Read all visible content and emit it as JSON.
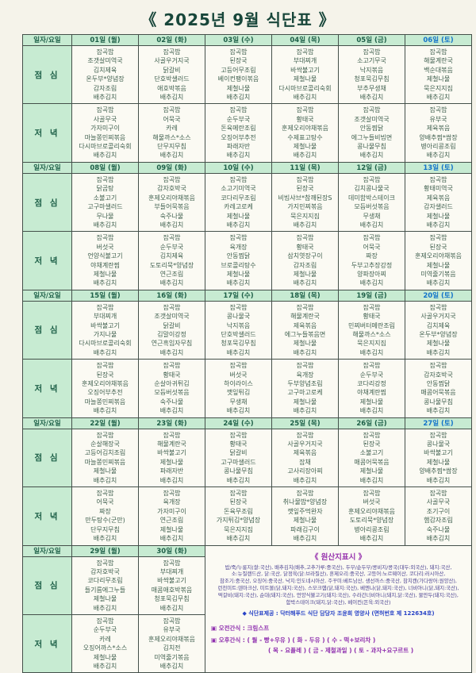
{
  "title": "《 2025년 9월 식단표 》",
  "header_label": "일자/요일",
  "row_labels": {
    "lunch": "점 심",
    "dinner": "저 녁"
  },
  "colors": {
    "header_bg": "#c7ebd2",
    "saturday_text": "#1173c9",
    "weekday_text": "#1d5f47",
    "menu_text": "#40604f",
    "origin_title": "#9631ad",
    "provider_text": "#2742c6"
  },
  "weeks": [
    {
      "dates": [
        "01일 (월)",
        "02일 (화)",
        "03일 (수)",
        "04일 (목)",
        "05일 (금)",
        "06일 (토)"
      ],
      "lunch": [
        [
          "잡곡밥",
          "조갯살미역국",
          "김치제육",
          "온두부*양념장",
          "감자조림",
          "배추김치"
        ],
        [
          "잡곡밥",
          "사골우거지국",
          "닭갈비",
          "단호박샐러드",
          "애호박볶음",
          "배추김치"
        ],
        [
          "잡곡밥",
          "된장국",
          "고등어무조림",
          "베이컨팽이볶음",
          "제철나물",
          "배추김치"
        ],
        [
          "잡곡밥",
          "부대찌개",
          "바싹불고기",
          "제철나물",
          "다시마브로콜리숙회",
          "배추김치"
        ],
        [
          "잡곡밥",
          "소고기무국",
          "낙지볶음",
          "청포묵김무침",
          "부추무생채",
          "배추김치"
        ],
        [
          "잡곡밥",
          "해물계란국",
          "백순대볶음",
          "제철나물",
          "묵은지지짐",
          "배추김치"
        ]
      ],
      "dinner": [
        [
          "잡곡밥",
          "사골무국",
          "가자미구이",
          "마늘쫑민찌볶음",
          "다시마브로콜리숙회",
          "배추김치"
        ],
        [
          "잡곡밥",
          "어묵국",
          "카레",
          "해물까스*소스",
          "단무지무침",
          "배추김치"
        ],
        [
          "잡곡밥",
          "순두부국",
          "돈육메란조림",
          "오징어부추전",
          "파래자반",
          "배추김치"
        ],
        [
          "잡곡밥",
          "황태국",
          "훈제오리야채볶음",
          "수제표고탕수",
          "제철나물",
          "배추김치"
        ],
        [
          "잡곡밥",
          "조갯살미역국",
          "안동찜닭",
          "에그누들비빔면",
          "콩나물무침",
          "배추김치"
        ],
        [
          "잡곡밥",
          "유부국",
          "제육볶음",
          "양배추찜*쌈장",
          "병아리콩조림",
          "배추김치"
        ]
      ]
    },
    {
      "dates": [
        "08일 (월)",
        "09일 (화)",
        "10일 (수)",
        "11일 (목)",
        "12일 (금)",
        "13일 (토)"
      ],
      "lunch": [
        [
          "잡곡밥",
          "닭곰탕",
          "소불고기",
          "고구마샐러드",
          "무나물",
          "배추김치"
        ],
        [
          "잡곡밥",
          "감자호박국",
          "훈제오리야채볶음",
          "부들어묵볶음",
          "숙주나물",
          "배추김치"
        ],
        [
          "잡곡밥",
          "소고기미역국",
          "코다리무조림",
          "카레고로케",
          "제철나물",
          "배추김치"
        ],
        [
          "잡곡밥",
          "된장국",
          "비빔샤브*참깨된장S",
          "가지민찌볶음",
          "묵은지지짐",
          "배추김치"
        ],
        [
          "잡곡밥",
          "김치콩나물국",
          "데미함박스테이크",
          "모듬버섯볶음",
          "무생채",
          "배추김치"
        ],
        [
          "잡곡밥",
          "황태미역국",
          "제육볶음",
          "감자샐러드",
          "제철나물",
          "배추김치"
        ]
      ],
      "dinner": [
        [
          "잡곡밥",
          "버섯국",
          "언양식불고기",
          "야채계란찜",
          "제철나물",
          "배추김치"
        ],
        [
          "잡곡밥",
          "순두부국",
          "김치제육",
          "도토리묵*양념장",
          "연근조림",
          "배추김치"
        ],
        [
          "잡곡밥",
          "육개장",
          "안동찜닭",
          "브로콜리탕수",
          "제철나물",
          "배추김치"
        ],
        [
          "잡곡밥",
          "황태국",
          "삼치엿장구이",
          "감자조림",
          "제철나물",
          "배추김치"
        ],
        [
          "잡곡밥",
          "어묵국",
          "짜장",
          "두부고추장강정",
          "양파장아찌",
          "배추김치"
        ],
        [
          "잡곡밥",
          "된장국",
          "훈제오리야채볶음",
          "제철나물",
          "미역줄기볶음",
          "배추김치"
        ]
      ]
    },
    {
      "dates": [
        "15일 (월)",
        "16일 (화)",
        "17일 (수)",
        "18일 (목)",
        "19일 (금)",
        "20일 (토)"
      ],
      "lunch": [
        [
          "잡곡밥",
          "부대찌개",
          "바싹불고기",
          "가지나물",
          "다시마브로콜리숙회",
          "배추김치"
        ],
        [
          "잡곡밥",
          "조갯살미역국",
          "닭갈비",
          "김말이강정",
          "연근흑임자무침",
          "배추김치"
        ],
        [
          "잡곡밥",
          "콩나물국",
          "낙지볶음",
          "단호박샐러드",
          "청포묵김무침",
          "배추김치"
        ],
        [
          "잡곡밥",
          "해물계란국",
          "제육볶음",
          "에그누들볶음면",
          "제철나물",
          "배추김치"
        ],
        [
          "잡곡밥",
          "황태국",
          "민찌버터메란조림",
          "해물까스*소스",
          "묵은지지짐",
          "배추김치"
        ],
        [
          "잡곡밥",
          "사골우거지국",
          "김치제육",
          "온두부*양념장",
          "제철나물",
          "배추김치"
        ]
      ],
      "dinner": [
        [
          "잡곡밥",
          "된장국",
          "훈제오리야채볶음",
          "오징어부추전",
          "마늘쫑민찌볶음",
          "배추김치"
        ],
        [
          "잡곡밥",
          "황태국",
          "순살아귀튀김",
          "모듬버섯볶음",
          "숙주나물",
          "배추김치"
        ],
        [
          "잡곡밥",
          "버섯국",
          "하이라이스",
          "깻잎튀김",
          "무생채",
          "배추김치"
        ],
        [
          "잡곡밥",
          "육개장",
          "두부양념조림",
          "고구마고로케",
          "제철나물",
          "배추김치"
        ],
        [
          "잡곡밥",
          "순두부국",
          "코다리강정",
          "야채계란찜",
          "제철나물",
          "배추김치"
        ],
        [
          "잡곡밥",
          "감자호박국",
          "안동찜닭",
          "매콤어묵볶음",
          "콩나물무침",
          "배추김치"
        ]
      ]
    },
    {
      "dates": [
        "22일 (월)",
        "23일 (화)",
        "24일 (수)",
        "25일 (목)",
        "26일 (금)",
        "27일 (토)"
      ],
      "lunch": [
        [
          "잡곡밥",
          "순살해장국",
          "고등어김치조림",
          "마늘쫑민찌볶음",
          "제철나물",
          "배추김치"
        ],
        [
          "잡곡밥",
          "해물계란국",
          "바싹불고기",
          "제철나물",
          "파래자반",
          "배추김치"
        ],
        [
          "잡곡밥",
          "황태국",
          "닭갈비",
          "고구마샐러드",
          "콩나물무침",
          "배추김치"
        ],
        [
          "잡곡밥",
          "사골우거지국",
          "제육볶음",
          "잡채",
          "고사리장아찌",
          "배추김치"
        ],
        [
          "잡곡밥",
          "된장국",
          "소불고기",
          "매콤어묵볶음",
          "제철나물",
          "배추김치"
        ],
        [
          "잡곡밥",
          "콩나물국",
          "바싹불고기",
          "제철나물",
          "양배추찜*쌈장",
          "배추김치"
        ]
      ],
      "dinner": [
        [
          "잡곡밥",
          "어묵국",
          "짜장",
          "만두탕수(군만)",
          "단무지무침",
          "배추김치"
        ],
        [
          "잡곡밥",
          "육개장",
          "가자미구이",
          "연근조림",
          "제철나물",
          "배추김치"
        ],
        [
          "잡곡밥",
          "된장국",
          "돈육무조림",
          "가지튀김*양념장",
          "묵은지지짐",
          "배추김치"
        ],
        [
          "잡곡밥",
          "취나물밥*양념장",
          "깻잎주먹완자",
          "제철나물",
          "파래김구이",
          "배추김치"
        ],
        [
          "잡곡밥",
          "버섯국",
          "훈제오리야채볶음",
          "도토리묵*양념장",
          "병아리콩조림",
          "배추김치"
        ],
        [
          "잡곡밥",
          "사골무국",
          "조기구이",
          "햄감자조림",
          "숙주나물",
          "배추김치"
        ]
      ]
    },
    {
      "dates": [
        "29일 (월)",
        "30일 (화)"
      ],
      "lunch": [
        [
          "잡곡밥",
          "감자호박국",
          "코다리무조림",
          "들기름에그누들",
          "제철나물",
          "배추김치"
        ],
        [
          "잡곡밥",
          "부대찌개",
          "바싹불고기",
          "매콤애호박볶음",
          "청포묵김무침",
          "배추김치"
        ]
      ],
      "dinner": [
        [
          "잡곡밥",
          "순두부국",
          "카레",
          "오징어까스*소스",
          "제철나물",
          "배추김치"
        ],
        [
          "잡곡밥",
          "유부국",
          "훈제오리야채볶음",
          "김치전",
          "미역줄기볶음",
          "배추김치"
        ]
      ]
    }
  ],
  "info": {
    "title": "《 원산지표시 》",
    "origin_lines": [
      "밥/죽/누룽지(쌀:국산), 배추김치(배추,고추가루:중국산), 두부/순두부/콩비지/콩국(대두:외국산), 돼지:국산,",
      "소:뉴질랜드산, 닭:국산, 닭정육(닭:브라질산), 훈제오리:중국산, 고등어:노르웨이산, 코다리:러시아산,",
      "참조기:중국산, 오징어:중국산, 낙지:인도네시아산, 주꾸미:베트남산, 생선까스:중국산, 참치캔(가다랑어:원양산),",
      "런천미트:덴마크산, 미트볼(닭,돼지:국산), 스모크햄(닭,돼지:국산), 베엔나(닭,돼지:국산), 너비아니(닭,돼지:국산),",
      "떡갈비(돼지:국산), 순대(돼지:국산), 언양식불고기(돼지:국산), 수라간너비아니(돼지,닭:국산), 물만두(돼지:국산),",
      "함박스테이크(돼지,닭:국산), 베이컨(돈육:외국산)"
    ],
    "provider": "◆ 식단표제공 : 닥터해푸드 식단 담당자 조윤희 영양사 (면허번호 제 122634호)",
    "snack_am": "▣ 오전간식 : 크림스프",
    "snack_pm_1": "▣ 오후간식 : ( 월 - 빵+우유 )   ( 화 - 두유 )      ( 수 - 떡+보리차 )",
    "snack_pm_2": "( 목 - 요플레 )   ( 금 - 제철과일 )   ( 토 - 과자+요구르트 )"
  }
}
